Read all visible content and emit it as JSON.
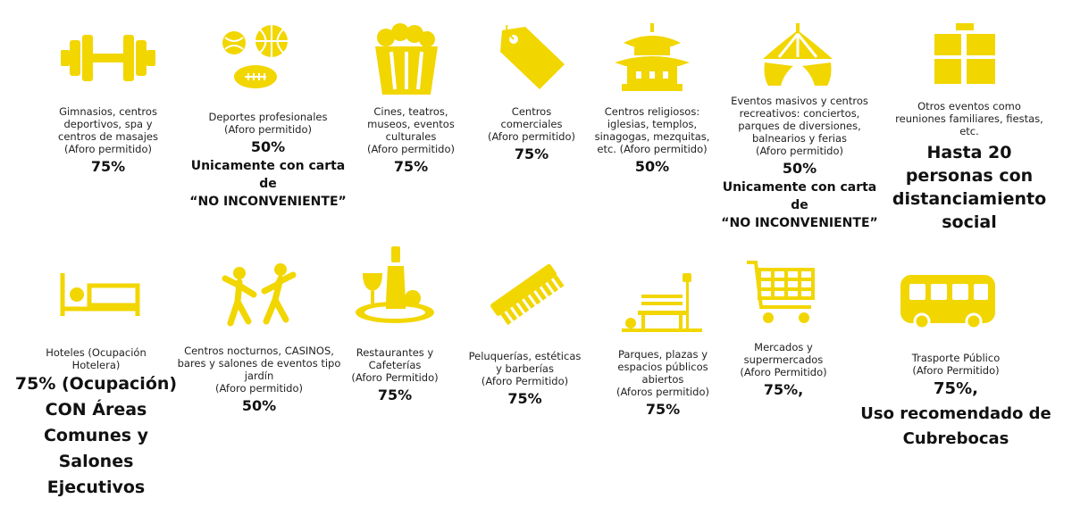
{
  "accent": "#f2d600",
  "tiles": {
    "gym": {
      "icon": "dumbbell-icon",
      "lines": [
        "Gimnasios, centros",
        "deportivos, spa y",
        "centros de masajes",
        "(Aforo permitido)"
      ],
      "value": "75%"
    },
    "sports": {
      "icon": "sports-balls-icon",
      "lines": [
        "Deportes profesionales",
        "(Aforo permitido)"
      ],
      "value": "50%",
      "note": [
        "Unicamente con carta",
        "de",
        "“NO INCONVENIENTE”"
      ]
    },
    "cinema": {
      "icon": "popcorn-icon",
      "lines": [
        "Cines, teatros,",
        "museos, eventos",
        "culturales",
        "(Aforo permitido)"
      ],
      "value": "75%"
    },
    "commerce": {
      "icon": "price-tag-icon",
      "lines": [
        "Centros",
        "comerciales",
        "(Aforo permitido)"
      ],
      "value": "75%"
    },
    "religious": {
      "icon": "temple-icon",
      "lines": [
        "Centros religiosos:",
        "iglesias, templos,",
        "sinagogas, mezquitas,",
        "etc. (Aforo permitido)"
      ],
      "value": "50%"
    },
    "events": {
      "icon": "circus-tent-icon",
      "lines": [
        "Eventos masivos y centros",
        "recreativos: conciertos,",
        "parques de diversiones,",
        "balnearios y ferias",
        "(Aforo permitido)"
      ],
      "value": "50%",
      "note": [
        "Unicamente con carta",
        "de",
        "“NO INCONVENIENTE”"
      ]
    },
    "other": {
      "icon": "window-grid-icon",
      "lines": [
        "Otros eventos como",
        "reuniones familiares, fiestas,",
        "etc."
      ],
      "big": [
        "Hasta 20",
        "personas con",
        "distanciamiento",
        "social"
      ]
    },
    "hotels": {
      "icon": "bed-icon",
      "lines": [
        "Hoteles (Ocupación",
        "Hotelera)"
      ],
      "big": [
        "75% (Ocupación)",
        "CON Áreas",
        "Comunes y",
        "Salones",
        "Ejecutivos"
      ]
    },
    "nightlife": {
      "icon": "dancers-icon",
      "lines": [
        "Centros nocturnos, CASINOS,",
        "bares y salones de eventos tipo",
        "jardín",
        "(Aforo permitido)"
      ],
      "value": "50%"
    },
    "restaurants": {
      "icon": "wine-bottle-icon",
      "lines": [
        "Restaurantes y",
        "Cafeterías",
        "(Aforo Permitido)"
      ],
      "value": "75%"
    },
    "salons": {
      "icon": "comb-icon",
      "lines": [
        "Peluquerías, estéticas",
        "y barberías",
        "(Aforo Permitido)"
      ],
      "value": "75%"
    },
    "parks": {
      "icon": "park-bench-icon",
      "lines": [
        "Parques, plazas y",
        "espacios públicos",
        "abiertos",
        "(Aforos permitido)"
      ],
      "value": "75%"
    },
    "markets": {
      "icon": "shopping-cart-icon",
      "lines": [
        "Mercados y",
        "supermercados",
        "(Aforo Permitido)"
      ],
      "value": "75%,"
    },
    "transport": {
      "icon": "bus-icon",
      "lines": [
        "Trasporte Público",
        "(Aforo Permitido)"
      ],
      "big": [
        "75%,",
        "Uso recomendado de",
        "Cubrebocas"
      ]
    }
  }
}
